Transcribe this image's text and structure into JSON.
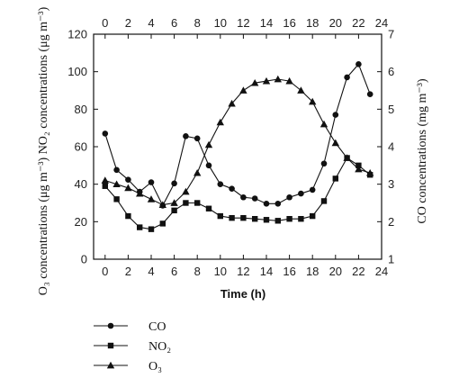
{
  "chart_data": {
    "type": "line",
    "xlabel": "Time (h)",
    "ylabel_left": "O₃ concentrations (μg m⁻³) NO₂ concentrations (μg m⁻³)",
    "ylabel_right": "CO concentrations (mg m⁻³)",
    "xlim": [
      -1,
      24
    ],
    "xticks": [
      0,
      2,
      4,
      6,
      8,
      10,
      12,
      14,
      16,
      18,
      20,
      22,
      24
    ],
    "ylim_left": [
      0,
      120
    ],
    "yticks_left": [
      0,
      20,
      40,
      60,
      80,
      100,
      120
    ],
    "ylim_right": [
      1,
      7
    ],
    "yticks_right": [
      1,
      2,
      3,
      4,
      5,
      6,
      7
    ],
    "x": [
      0,
      1,
      2,
      3,
      4,
      5,
      6,
      7,
      8,
      9,
      10,
      11,
      12,
      13,
      14,
      15,
      16,
      17,
      18,
      19,
      20,
      21,
      22,
      23
    ],
    "series": [
      {
        "name": "CO",
        "axis": "right",
        "marker": "circle",
        "values": [
          4.35,
          3.38,
          3.12,
          2.8,
          3.05,
          2.43,
          3.02,
          4.28,
          4.22,
          3.5,
          3.0,
          2.88,
          2.65,
          2.62,
          2.48,
          2.48,
          2.65,
          2.75,
          2.85,
          3.55,
          4.85,
          5.85,
          6.2,
          5.4
        ]
      },
      {
        "name": "NO2",
        "axis": "left",
        "marker": "square",
        "values": [
          39,
          32,
          23,
          17,
          16,
          19,
          26,
          30,
          30,
          27,
          23,
          22,
          22,
          21.5,
          21,
          20.5,
          21.5,
          21.5,
          23,
          31,
          43,
          54,
          50,
          45
        ]
      },
      {
        "name": "O3",
        "axis": "left",
        "marker": "triangle",
        "values": [
          42,
          40,
          38,
          35,
          32,
          29,
          30,
          36,
          46,
          61,
          73,
          83,
          90,
          94,
          95,
          96,
          95,
          90,
          84,
          72,
          62,
          54,
          48,
          46
        ]
      }
    ],
    "legend": {
      "position": "bottom-left",
      "labels": [
        "CO",
        "NO₂",
        "O₃"
      ]
    }
  }
}
